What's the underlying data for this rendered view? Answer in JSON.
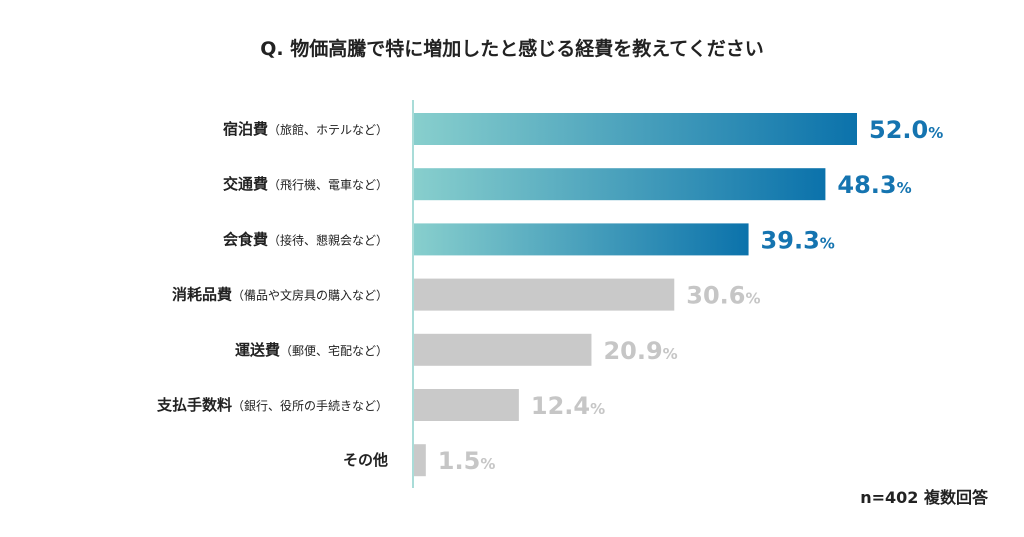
{
  "chart_data": {
    "type": "bar",
    "orientation": "horizontal",
    "title": "Q. 物価高騰で特に増加したと感じる経費を教えてください",
    "categories": [
      {
        "main": "宿泊費",
        "sub": "（旅館、ホテルなど）"
      },
      {
        "main": "交通費",
        "sub": "（飛行機、電車など）"
      },
      {
        "main": "会食費",
        "sub": "（接待、懇親会など）"
      },
      {
        "main": "消耗品費",
        "sub": "（備品や文房具の購入など）"
      },
      {
        "main": "運送費",
        "sub": "（郵便、宅配など）"
      },
      {
        "main": "支払手数料",
        "sub": "（銀行、役所の手続きなど）"
      },
      {
        "main": "その他",
        "sub": ""
      }
    ],
    "values": [
      52.0,
      48.3,
      39.3,
      30.6,
      20.9,
      12.4,
      1.5
    ],
    "unit": "%",
    "highlighted_count": 3,
    "grid": false,
    "colors": {
      "highlight_start": "#88cfcd",
      "highlight_end": "#0b72ab",
      "highlight_label": "#1574b0",
      "muted_bar": "#c9c9c9",
      "muted_label": "#c6c6c6",
      "axis": "#a9dcd8"
    },
    "note": "n=402 複数回答"
  }
}
